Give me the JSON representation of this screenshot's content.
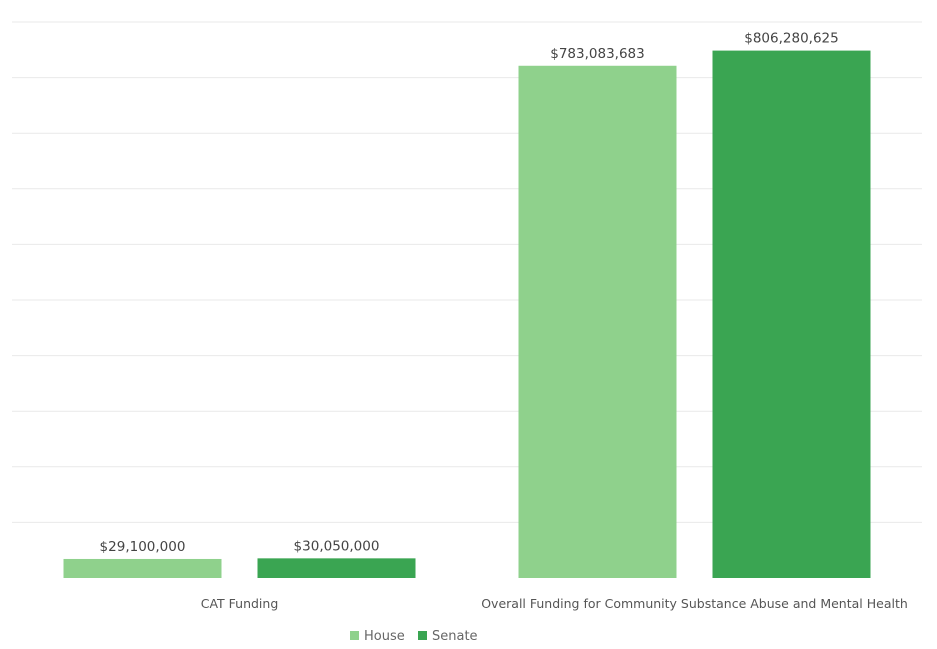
{
  "chart_data": {
    "type": "bar",
    "categories": [
      "CAT Funding",
      "Overall Funding for Community Substance Abuse and Mental Health"
    ],
    "series": [
      {
        "name": "House",
        "values": [
          29100000,
          783083683
        ],
        "labels": [
          "$29,100,000",
          "$783,083,683"
        ],
        "color": "#8fd18c"
      },
      {
        "name": "Senate",
        "values": [
          30050000,
          806280625
        ],
        "labels": [
          "$30,050,000",
          "$806,280,625"
        ],
        "color": "#3aa552"
      }
    ],
    "ylim": [
      0,
      850000000
    ],
    "gridlines": 10,
    "grid": true,
    "legend": "bottom"
  }
}
